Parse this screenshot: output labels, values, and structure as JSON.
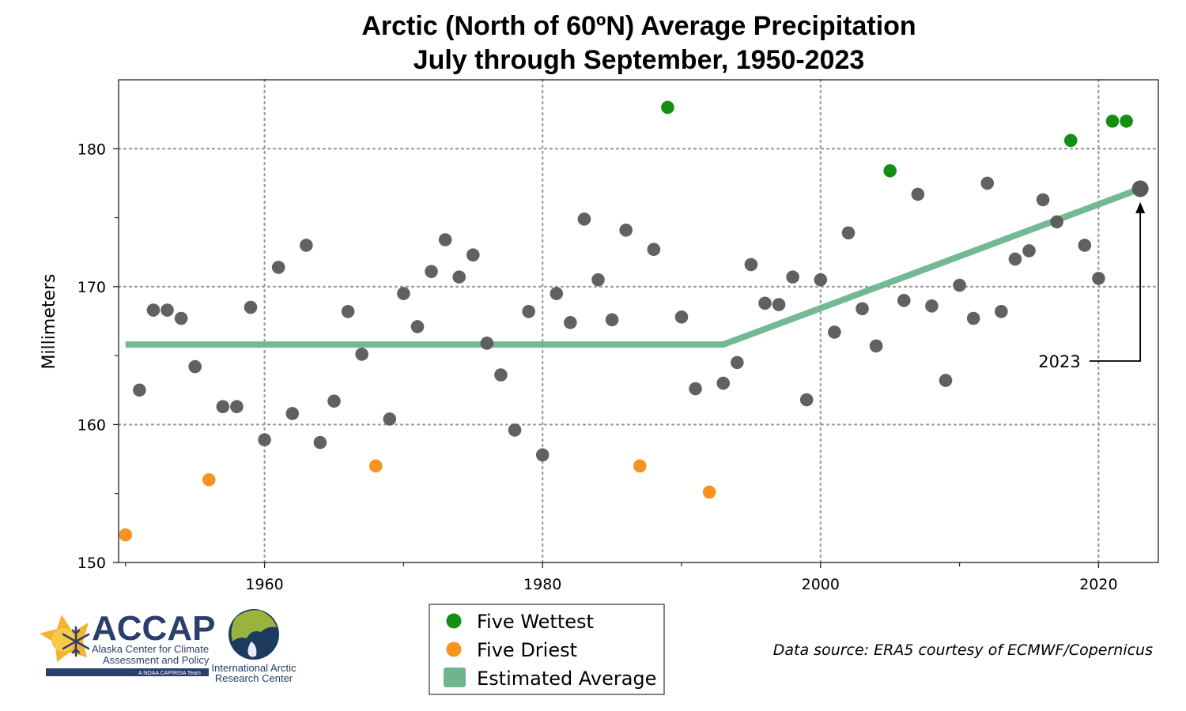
{
  "chart_data": {
    "type": "scatter",
    "title": "Arctic (North of 60ºN) Average Precipitation",
    "subtitle": "July through September, 1950-2023",
    "xlabel": "",
    "ylabel": "Millimeters",
    "xlim": [
      1949.5,
      2024.3
    ],
    "ylim": [
      150,
      185
    ],
    "x_ticks": [
      1960,
      1980,
      2000,
      2020
    ],
    "x_minor_ticks": [
      1950,
      1970,
      1990,
      2010
    ],
    "y_ticks": [
      150,
      160,
      170,
      180
    ],
    "y_minor_ticks": [
      155,
      165,
      175
    ],
    "grid": true,
    "legend_position": "bottom-center",
    "colors": {
      "normal": "#595959",
      "wettest": "#138f13",
      "driest": "#f7931e",
      "average": "#6db58f"
    },
    "legend": [
      {
        "label": "Five Wettest",
        "key": "wettest"
      },
      {
        "label": "Five Driest",
        "key": "driest"
      },
      {
        "label": "Estimated Average",
        "key": "average"
      }
    ],
    "points": [
      {
        "x": 1950,
        "y": 152.0,
        "cat": "driest"
      },
      {
        "x": 1951,
        "y": 162.5,
        "cat": "normal"
      },
      {
        "x": 1952,
        "y": 168.3,
        "cat": "normal"
      },
      {
        "x": 1953,
        "y": 168.3,
        "cat": "normal"
      },
      {
        "x": 1954,
        "y": 167.7,
        "cat": "normal"
      },
      {
        "x": 1955,
        "y": 164.2,
        "cat": "normal"
      },
      {
        "x": 1956,
        "y": 156.0,
        "cat": "driest"
      },
      {
        "x": 1957,
        "y": 161.3,
        "cat": "normal"
      },
      {
        "x": 1958,
        "y": 161.3,
        "cat": "normal"
      },
      {
        "x": 1959,
        "y": 168.5,
        "cat": "normal"
      },
      {
        "x": 1960,
        "y": 158.9,
        "cat": "normal"
      },
      {
        "x": 1961,
        "y": 171.4,
        "cat": "normal"
      },
      {
        "x": 1962,
        "y": 160.8,
        "cat": "normal"
      },
      {
        "x": 1963,
        "y": 173.0,
        "cat": "normal"
      },
      {
        "x": 1964,
        "y": 158.7,
        "cat": "normal"
      },
      {
        "x": 1965,
        "y": 161.7,
        "cat": "normal"
      },
      {
        "x": 1966,
        "y": 168.2,
        "cat": "normal"
      },
      {
        "x": 1967,
        "y": 165.1,
        "cat": "normal"
      },
      {
        "x": 1968,
        "y": 157.0,
        "cat": "driest"
      },
      {
        "x": 1969,
        "y": 160.4,
        "cat": "normal"
      },
      {
        "x": 1970,
        "y": 169.5,
        "cat": "normal"
      },
      {
        "x": 1971,
        "y": 167.1,
        "cat": "normal"
      },
      {
        "x": 1972,
        "y": 171.1,
        "cat": "normal"
      },
      {
        "x": 1973,
        "y": 173.4,
        "cat": "normal"
      },
      {
        "x": 1974,
        "y": 170.7,
        "cat": "normal"
      },
      {
        "x": 1975,
        "y": 172.3,
        "cat": "normal"
      },
      {
        "x": 1976,
        "y": 165.9,
        "cat": "normal"
      },
      {
        "x": 1977,
        "y": 163.6,
        "cat": "normal"
      },
      {
        "x": 1978,
        "y": 159.6,
        "cat": "normal"
      },
      {
        "x": 1979,
        "y": 168.2,
        "cat": "normal"
      },
      {
        "x": 1980,
        "y": 157.8,
        "cat": "normal"
      },
      {
        "x": 1981,
        "y": 169.5,
        "cat": "normal"
      },
      {
        "x": 1982,
        "y": 167.4,
        "cat": "normal"
      },
      {
        "x": 1983,
        "y": 174.9,
        "cat": "normal"
      },
      {
        "x": 1984,
        "y": 170.5,
        "cat": "normal"
      },
      {
        "x": 1985,
        "y": 167.6,
        "cat": "normal"
      },
      {
        "x": 1986,
        "y": 174.1,
        "cat": "normal"
      },
      {
        "x": 1987,
        "y": 157.0,
        "cat": "driest"
      },
      {
        "x": 1988,
        "y": 172.7,
        "cat": "normal"
      },
      {
        "x": 1989,
        "y": 183.0,
        "cat": "wettest"
      },
      {
        "x": 1990,
        "y": 167.8,
        "cat": "normal"
      },
      {
        "x": 1991,
        "y": 162.6,
        "cat": "normal"
      },
      {
        "x": 1992,
        "y": 155.1,
        "cat": "driest"
      },
      {
        "x": 1993,
        "y": 163.0,
        "cat": "normal"
      },
      {
        "x": 1994,
        "y": 164.5,
        "cat": "normal"
      },
      {
        "x": 1995,
        "y": 171.6,
        "cat": "normal"
      },
      {
        "x": 1996,
        "y": 168.8,
        "cat": "normal"
      },
      {
        "x": 1997,
        "y": 168.7,
        "cat": "normal"
      },
      {
        "x": 1998,
        "y": 170.7,
        "cat": "normal"
      },
      {
        "x": 1999,
        "y": 161.8,
        "cat": "normal"
      },
      {
        "x": 2000,
        "y": 170.5,
        "cat": "normal"
      },
      {
        "x": 2001,
        "y": 166.7,
        "cat": "normal"
      },
      {
        "x": 2002,
        "y": 173.9,
        "cat": "normal"
      },
      {
        "x": 2003,
        "y": 168.4,
        "cat": "normal"
      },
      {
        "x": 2004,
        "y": 165.7,
        "cat": "normal"
      },
      {
        "x": 2005,
        "y": 178.4,
        "cat": "wettest"
      },
      {
        "x": 2006,
        "y": 169.0,
        "cat": "normal"
      },
      {
        "x": 2007,
        "y": 176.7,
        "cat": "normal"
      },
      {
        "x": 2008,
        "y": 168.6,
        "cat": "normal"
      },
      {
        "x": 2009,
        "y": 163.2,
        "cat": "normal"
      },
      {
        "x": 2010,
        "y": 170.1,
        "cat": "normal"
      },
      {
        "x": 2011,
        "y": 167.7,
        "cat": "normal"
      },
      {
        "x": 2012,
        "y": 177.5,
        "cat": "normal"
      },
      {
        "x": 2013,
        "y": 168.2,
        "cat": "normal"
      },
      {
        "x": 2014,
        "y": 172.0,
        "cat": "normal"
      },
      {
        "x": 2015,
        "y": 172.6,
        "cat": "normal"
      },
      {
        "x": 2016,
        "y": 176.3,
        "cat": "normal"
      },
      {
        "x": 2017,
        "y": 174.7,
        "cat": "normal"
      },
      {
        "x": 2018,
        "y": 180.6,
        "cat": "wettest"
      },
      {
        "x": 2019,
        "y": 173.0,
        "cat": "normal"
      },
      {
        "x": 2020,
        "y": 170.6,
        "cat": "normal"
      },
      {
        "x": 2021,
        "y": 182.0,
        "cat": "wettest"
      },
      {
        "x": 2022,
        "y": 182.0,
        "cat": "wettest"
      },
      {
        "x": 2023,
        "y": 177.1,
        "cat": "highlight"
      }
    ],
    "estimated_average": [
      {
        "x": 1950,
        "y": 165.8
      },
      {
        "x": 1993,
        "y": 165.8
      },
      {
        "x": 2023,
        "y": 177.1
      }
    ],
    "annotation": {
      "text": "2023",
      "target_x": 2023,
      "target_y": 177.1
    }
  },
  "data_source": "Data source: ERA5 courtesy of ECMWF/Copernicus",
  "logos": {
    "accap": {
      "name": "ACCAP",
      "line1": "Alaska Center for Climate",
      "line2": "Assessment and Policy",
      "tagline": "A NOAA CAP/RISA Team",
      "color": "#2b3f6c",
      "sun_color": "#f2b233"
    },
    "iarc": {
      "line1": "International Arctic",
      "line2": "Research Center",
      "color": "#1d3a5f"
    }
  }
}
